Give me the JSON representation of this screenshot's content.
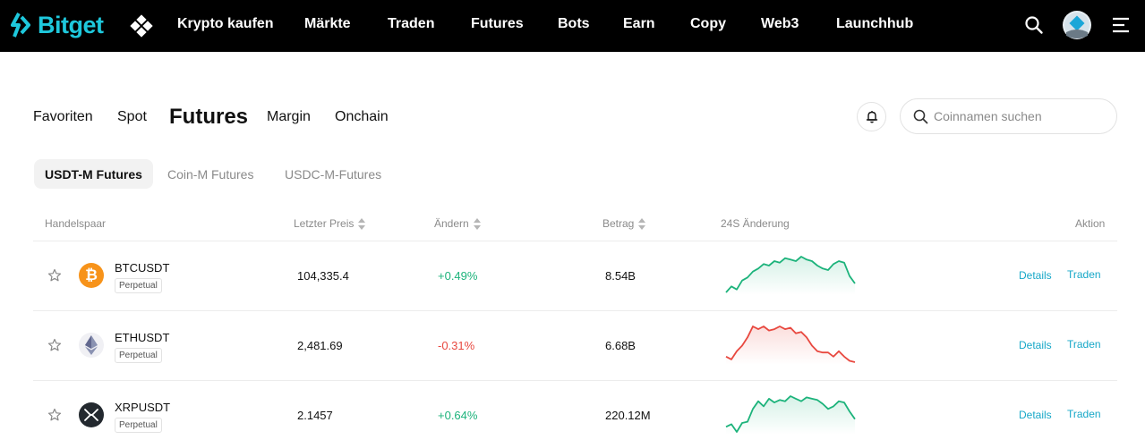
{
  "brand": {
    "name": "Bitget",
    "accent": "#1ec8dc"
  },
  "nav": {
    "items": [
      "Krypto kaufen",
      "Märkte",
      "Traden",
      "Futures",
      "Bots",
      "Earn",
      "Copy",
      "Web3",
      "Launchhub"
    ]
  },
  "market_tabs": [
    "Favoriten",
    "Spot",
    "Futures",
    "Margin",
    "Onchain"
  ],
  "active_market_tab": "Futures",
  "search": {
    "placeholder": "Coinnamen suchen"
  },
  "sub_tabs": [
    "USDT-M Futures",
    "Coin-M Futures",
    "USDC-M-Futures"
  ],
  "active_sub_tab": "USDT-M Futures",
  "table": {
    "headers": {
      "pair": "Handelspaar",
      "price": "Letzter Preis",
      "change": "Ändern",
      "volume": "Betrag",
      "chart": "24S Änderung",
      "action": "Aktion"
    },
    "rows": [
      {
        "pair": "BTCUSDT",
        "badge": "Perpetual",
        "price": "104,335.4",
        "change": "+0.49%",
        "direction": "up",
        "volume": "8.54B",
        "details": "Details",
        "trade": "Traden",
        "icon": "bitcoin-icon",
        "spark": [
          14,
          18,
          16,
          22,
          24,
          28,
          30,
          33,
          32,
          35,
          34,
          37,
          36,
          35,
          38,
          36,
          35,
          32,
          30,
          29,
          33,
          35,
          34,
          25,
          20
        ]
      },
      {
        "pair": "ETHUSDT",
        "badge": "Perpetual",
        "price": "2,481.69",
        "change": "-0.31%",
        "direction": "down",
        "volume": "6.68B",
        "details": "Details",
        "trade": "Traden",
        "icon": "ethereum-icon",
        "spark": [
          14,
          12,
          18,
          22,
          28,
          36,
          34,
          36,
          33,
          34,
          36,
          34,
          35,
          31,
          32,
          28,
          22,
          18,
          17,
          17,
          14,
          18,
          14,
          11,
          10
        ]
      },
      {
        "pair": "XRPUSDT",
        "badge": "Perpetual",
        "price": "2.1457",
        "change": "+0.64%",
        "direction": "up",
        "volume": "220.12M",
        "details": "Details",
        "trade": "Traden",
        "icon": "xrp-icon",
        "spark": [
          14,
          16,
          10,
          17,
          18,
          28,
          34,
          30,
          36,
          33,
          35,
          34,
          38,
          36,
          34,
          37,
          36,
          35,
          32,
          28,
          30,
          34,
          33,
          26,
          20
        ]
      }
    ]
  },
  "colors": {
    "up": "#1cb37b",
    "down": "#e8483f",
    "link": "#17a8c8"
  }
}
